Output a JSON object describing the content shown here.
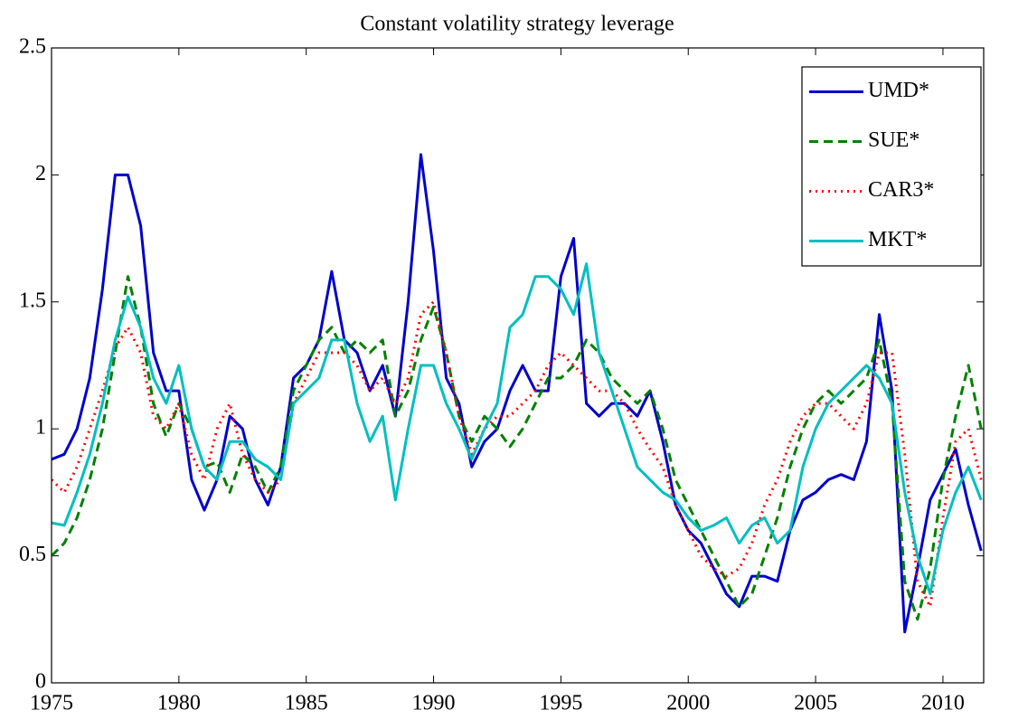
{
  "chart_data": {
    "type": "line",
    "title": "Constant volatility strategy leverage",
    "x": [
      1975,
      1975.5,
      1976,
      1976.5,
      1977,
      1977.5,
      1978,
      1978.5,
      1979,
      1979.5,
      1980,
      1980.5,
      1981,
      1981.5,
      1982,
      1982.5,
      1983,
      1983.5,
      1984,
      1984.5,
      1985,
      1985.5,
      1986,
      1986.5,
      1987,
      1987.5,
      1988,
      1988.5,
      1989,
      1989.5,
      1990,
      1990.5,
      1991,
      1991.5,
      1992,
      1992.5,
      1993,
      1993.5,
      1994,
      1994.5,
      1995,
      1995.5,
      1996,
      1996.5,
      1997,
      1997.5,
      1998,
      1998.5,
      1999,
      1999.5,
      2000,
      2000.5,
      2001,
      2001.5,
      2002,
      2002.5,
      2003,
      2003.5,
      2004,
      2004.5,
      2005,
      2005.5,
      2006,
      2006.5,
      2007,
      2007.5,
      2008,
      2008.5,
      2009,
      2009.5,
      2010,
      2010.5,
      2011,
      2011.5
    ],
    "series": [
      {
        "name": "UMD*",
        "color": "#0000cc",
        "style": "solid",
        "values": [
          0.88,
          0.9,
          1.0,
          1.2,
          1.55,
          2.0,
          2.0,
          1.8,
          1.3,
          1.15,
          1.15,
          0.8,
          0.68,
          0.8,
          1.05,
          1.0,
          0.8,
          0.7,
          0.85,
          1.2,
          1.25,
          1.35,
          1.62,
          1.35,
          1.3,
          1.15,
          1.25,
          1.05,
          1.5,
          2.08,
          1.7,
          1.2,
          1.1,
          0.85,
          0.95,
          1.0,
          1.15,
          1.25,
          1.15,
          1.15,
          1.6,
          1.75,
          1.1,
          1.05,
          1.1,
          1.1,
          1.05,
          1.15,
          0.95,
          0.7,
          0.6,
          0.55,
          0.45,
          0.35,
          0.3,
          0.42,
          0.42,
          0.4,
          0.6,
          0.72,
          0.75,
          0.8,
          0.82,
          0.8,
          0.95,
          1.45,
          1.15,
          0.2,
          0.45,
          0.72,
          0.82,
          0.92,
          0.7,
          0.52
        ]
      },
      {
        "name": "SUE*",
        "color": "#008000",
        "style": "dashed",
        "values": [
          0.5,
          0.55,
          0.65,
          0.8,
          1.0,
          1.3,
          1.6,
          1.4,
          1.1,
          0.97,
          1.1,
          1.0,
          0.85,
          0.87,
          0.75,
          0.9,
          0.85,
          0.75,
          0.85,
          1.15,
          1.25,
          1.35,
          1.4,
          1.3,
          1.35,
          1.3,
          1.35,
          1.05,
          1.15,
          1.35,
          1.48,
          1.3,
          1.05,
          0.95,
          1.05,
          1.0,
          0.93,
          1.0,
          1.1,
          1.2,
          1.2,
          1.25,
          1.35,
          1.3,
          1.2,
          1.15,
          1.1,
          1.15,
          1.0,
          0.8,
          0.7,
          0.6,
          0.5,
          0.4,
          0.3,
          0.35,
          0.5,
          0.65,
          0.85,
          1.0,
          1.1,
          1.15,
          1.1,
          1.15,
          1.2,
          1.35,
          1.1,
          0.4,
          0.25,
          0.45,
          0.8,
          1.05,
          1.25,
          1.0
        ]
      },
      {
        "name": "CAR3*",
        "color": "#ff0000",
        "style": "dotted",
        "values": [
          0.8,
          0.75,
          0.85,
          1.0,
          1.15,
          1.32,
          1.4,
          1.3,
          1.05,
          1.0,
          1.1,
          0.9,
          0.8,
          1.0,
          1.1,
          0.9,
          0.8,
          0.75,
          0.8,
          1.1,
          1.2,
          1.3,
          1.3,
          1.3,
          1.25,
          1.15,
          1.2,
          1.1,
          1.2,
          1.45,
          1.5,
          1.3,
          1.05,
          0.9,
          1.0,
          1.05,
          1.05,
          1.1,
          1.15,
          1.25,
          1.3,
          1.25,
          1.2,
          1.15,
          1.15,
          1.1,
          1.0,
          0.92,
          0.85,
          0.7,
          0.6,
          0.5,
          0.45,
          0.42,
          0.45,
          0.55,
          0.7,
          0.8,
          0.95,
          1.05,
          1.1,
          1.1,
          1.05,
          1.0,
          1.1,
          1.3,
          1.3,
          0.9,
          0.4,
          0.3,
          0.65,
          0.95,
          1.0,
          0.8
        ]
      },
      {
        "name": "MKT*",
        "color": "#00bfbf",
        "style": "solid",
        "values": [
          0.63,
          0.62,
          0.75,
          0.9,
          1.1,
          1.35,
          1.52,
          1.4,
          1.2,
          1.1,
          1.25,
          1.0,
          0.85,
          0.8,
          0.95,
          0.95,
          0.88,
          0.85,
          0.8,
          1.1,
          1.15,
          1.2,
          1.35,
          1.35,
          1.1,
          0.95,
          1.05,
          0.72,
          1.0,
          1.25,
          1.25,
          1.1,
          1.0,
          0.88,
          1.0,
          1.1,
          1.4,
          1.45,
          1.6,
          1.6,
          1.55,
          1.45,
          1.65,
          1.3,
          1.15,
          1.0,
          0.85,
          0.8,
          0.75,
          0.72,
          0.65,
          0.6,
          0.62,
          0.65,
          0.55,
          0.62,
          0.65,
          0.55,
          0.6,
          0.85,
          1.0,
          1.1,
          1.15,
          1.2,
          1.25,
          1.2,
          1.1,
          0.75,
          0.5,
          0.35,
          0.6,
          0.75,
          0.85,
          0.72
        ]
      }
    ],
    "xlim": [
      1975,
      2011.6
    ],
    "xticks": [
      1975,
      1980,
      1985,
      1990,
      1995,
      2000,
      2005,
      2010
    ],
    "ylim": [
      0,
      2.5
    ],
    "yticks": [
      0,
      0.5,
      1,
      1.5,
      2,
      2.5
    ],
    "grid": false,
    "legend": "top-right"
  }
}
